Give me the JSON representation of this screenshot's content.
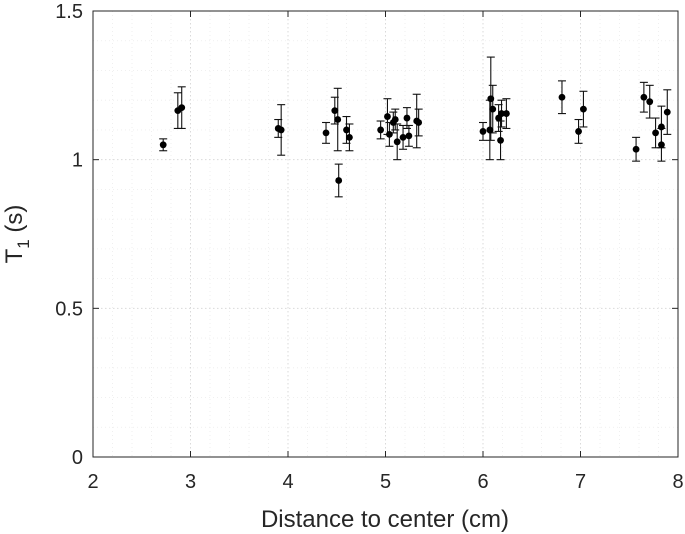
{
  "chart_data": {
    "type": "scatter",
    "title": "",
    "xlabel": "Distance to center (cm)",
    "ylabel_main": "T",
    "ylabel_sub": "1",
    "ylabel_unit": " (s)",
    "xlim": [
      2,
      8
    ],
    "ylim": [
      0,
      1.5
    ],
    "xticks": [
      2,
      3,
      4,
      5,
      6,
      7,
      8
    ],
    "yticks": [
      0,
      0.5,
      1,
      1.5
    ],
    "ytick_labels": [
      "0",
      "0.5",
      "1",
      "1.5"
    ],
    "grid": true,
    "minor_grid": true,
    "legend": "none",
    "marker_color": "#000000",
    "points": [
      {
        "x": 2.72,
        "y": 1.05,
        "err": 0.02
      },
      {
        "x": 2.87,
        "y": 1.165,
        "err": 0.06
      },
      {
        "x": 2.91,
        "y": 1.175,
        "err": 0.07
      },
      {
        "x": 3.9,
        "y": 1.105,
        "err": 0.03
      },
      {
        "x": 3.93,
        "y": 1.1,
        "err": 0.085
      },
      {
        "x": 4.39,
        "y": 1.09,
        "err": 0.035
      },
      {
        "x": 4.48,
        "y": 1.165,
        "err": 0.045
      },
      {
        "x": 4.51,
        "y": 1.135,
        "err": 0.105
      },
      {
        "x": 4.52,
        "y": 0.93,
        "err": 0.055
      },
      {
        "x": 4.6,
        "y": 1.1,
        "err": 0.045
      },
      {
        "x": 4.63,
        "y": 1.075,
        "err": 0.045
      },
      {
        "x": 4.95,
        "y": 1.1,
        "err": 0.03
      },
      {
        "x": 5.02,
        "y": 1.145,
        "err": 0.06
      },
      {
        "x": 5.04,
        "y": 1.085,
        "err": 0.04
      },
      {
        "x": 5.08,
        "y": 1.125,
        "err": 0.035
      },
      {
        "x": 5.1,
        "y": 1.135,
        "err": 0.035
      },
      {
        "x": 5.12,
        "y": 1.06,
        "err": 0.06
      },
      {
        "x": 5.18,
        "y": 1.075,
        "err": 0.04
      },
      {
        "x": 5.22,
        "y": 1.14,
        "err": 0.035
      },
      {
        "x": 5.24,
        "y": 1.08,
        "err": 0.035
      },
      {
        "x": 5.32,
        "y": 1.13,
        "err": 0.09
      },
      {
        "x": 5.34,
        "y": 1.125,
        "err": 0.045
      },
      {
        "x": 6.0,
        "y": 1.095,
        "err": 0.03
      },
      {
        "x": 6.07,
        "y": 1.1,
        "err": 0.1
      },
      {
        "x": 6.08,
        "y": 1.205,
        "err": 0.14
      },
      {
        "x": 6.1,
        "y": 1.17,
        "err": 0.08
      },
      {
        "x": 6.16,
        "y": 1.14,
        "err": 0.045
      },
      {
        "x": 6.18,
        "y": 1.065,
        "err": 0.065
      },
      {
        "x": 6.19,
        "y": 1.155,
        "err": 0.045
      },
      {
        "x": 6.24,
        "y": 1.155,
        "err": 0.05
      },
      {
        "x": 6.81,
        "y": 1.21,
        "err": 0.055
      },
      {
        "x": 6.98,
        "y": 1.095,
        "err": 0.04
      },
      {
        "x": 7.03,
        "y": 1.17,
        "err": 0.06
      },
      {
        "x": 7.57,
        "y": 1.035,
        "err": 0.04
      },
      {
        "x": 7.65,
        "y": 1.21,
        "err": 0.05
      },
      {
        "x": 7.71,
        "y": 1.195,
        "err": 0.055
      },
      {
        "x": 7.77,
        "y": 1.09,
        "err": 0.05
      },
      {
        "x": 7.83,
        "y": 1.11,
        "err": 0.07
      },
      {
        "x": 7.83,
        "y": 1.05,
        "err": 0.055
      },
      {
        "x": 7.89,
        "y": 1.16,
        "err": 0.075
      }
    ]
  }
}
